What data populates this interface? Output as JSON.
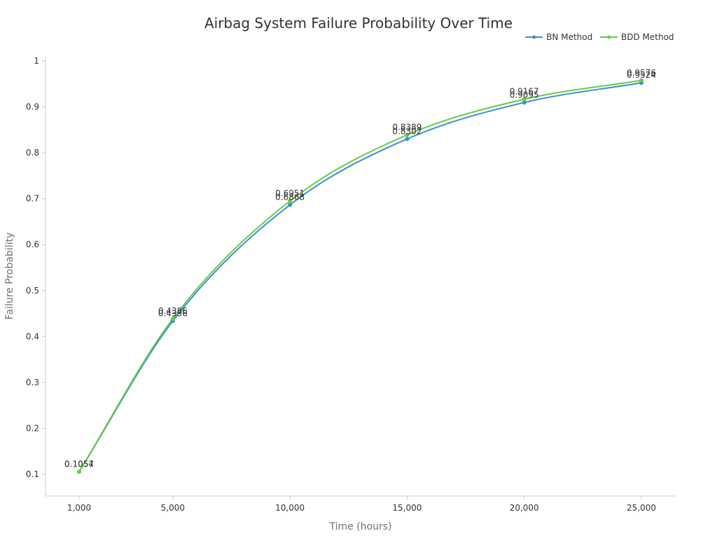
{
  "chart_data": {
    "type": "line",
    "title": "Airbag System Failure Probability Over Time",
    "xlabel": "Time (hours)",
    "ylabel": "Failure Probability",
    "x": [
      1000,
      5000,
      10000,
      15000,
      20000,
      25000
    ],
    "x_tick_labels": [
      "1,000",
      "5,000",
      "10,000",
      "15,000",
      "20,000",
      "25,000"
    ],
    "y_ticks": [
      0.1,
      0.2,
      0.3,
      0.4,
      0.5,
      0.6,
      0.7,
      0.8,
      0.9,
      1
    ],
    "y_tick_labels": [
      "0.1",
      "0.2",
      "0.3",
      "0.4",
      "0.5",
      "0.6",
      "0.7",
      "0.8",
      "0.9",
      "1"
    ],
    "ylim": [
      0.05,
      1.01
    ],
    "xlim": [
      0,
      26000
    ],
    "grid": false,
    "smooth": true,
    "legend_position": "top-right",
    "series": [
      {
        "name": "BN Method",
        "color": "#3b8fd9",
        "values": [
          0.1054,
          0.4336,
          0.6868,
          0.8302,
          0.9095,
          0.9524
        ],
        "labels": [
          "0.1054",
          "0.4336",
          "0.6868",
          "0.8302",
          "0.9095",
          "0.9524"
        ]
      },
      {
        "name": "BDD Method",
        "color": "#66cc44",
        "values": [
          0.1057,
          0.4386,
          0.6951,
          0.8389,
          0.9167,
          0.9576
        ],
        "labels": [
          "0.1057",
          "0.4386",
          "0.6951",
          "0.8389",
          "0.9167",
          "0.9576"
        ]
      }
    ]
  }
}
